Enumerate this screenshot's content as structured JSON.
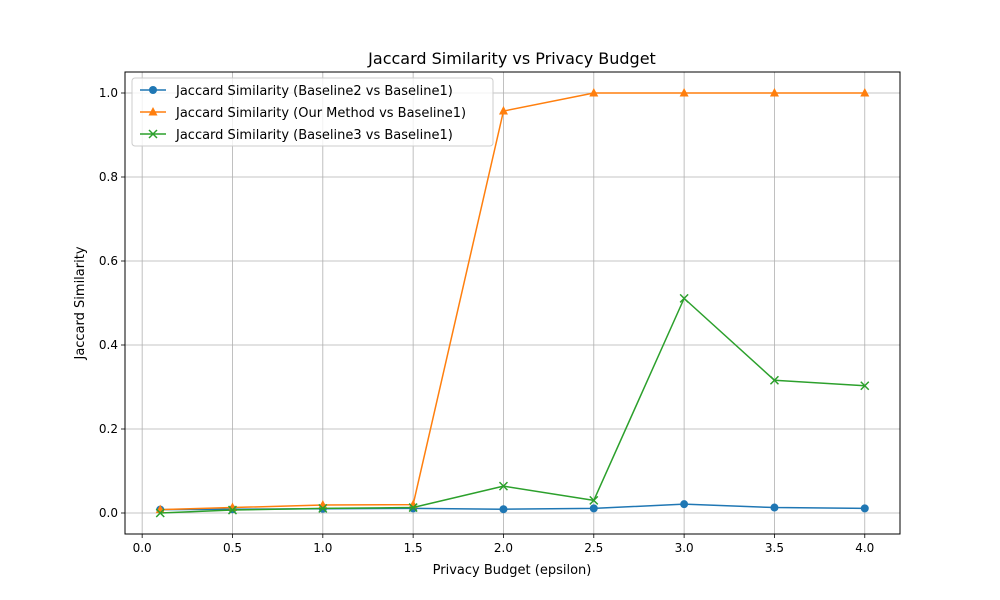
{
  "chart_data": {
    "type": "line",
    "title": "Jaccard Similarity vs Privacy Budget",
    "xlabel": "Privacy Budget (epsilon)",
    "ylabel": "Jaccard Similarity",
    "x": [
      0.1,
      0.5,
      1.0,
      1.5,
      2.0,
      2.5,
      3.0,
      3.5,
      4.0
    ],
    "xlim": [
      -0.095,
      4.195
    ],
    "ylim": [
      -0.05,
      1.05
    ],
    "xticks": [
      0.0,
      0.5,
      1.0,
      1.5,
      2.0,
      2.5,
      3.0,
      3.5,
      4.0
    ],
    "xtick_labels": [
      "0.0",
      "0.5",
      "1.0",
      "1.5",
      "2.0",
      "2.5",
      "3.0",
      "3.5",
      "4.0"
    ],
    "yticks": [
      0.0,
      0.2,
      0.4,
      0.6,
      0.8,
      1.0
    ],
    "ytick_labels": [
      "0.0",
      "0.2",
      "0.4",
      "0.6",
      "0.8",
      "1.0"
    ],
    "grid": true,
    "legend_position": "top-left",
    "series": [
      {
        "name": "Jaccard Similarity (Baseline2 vs Baseline1)",
        "color": "#1f77b4",
        "marker": "circle",
        "values": [
          0.008,
          0.009,
          0.01,
          0.011,
          0.009,
          0.011,
          0.021,
          0.013,
          0.011
        ]
      },
      {
        "name": "Jaccard Similarity (Our Method vs Baseline1)",
        "color": "#ff7f0e",
        "marker": "triangle",
        "values": [
          0.008,
          0.013,
          0.019,
          0.02,
          0.957,
          1.0,
          1.0,
          1.0,
          1.0
        ]
      },
      {
        "name": "Jaccard Similarity (Baseline3 vs Baseline1)",
        "color": "#2ca02c",
        "marker": "x",
        "values": [
          0.0,
          0.007,
          0.011,
          0.013,
          0.064,
          0.03,
          0.511,
          0.316,
          0.303
        ]
      }
    ]
  }
}
